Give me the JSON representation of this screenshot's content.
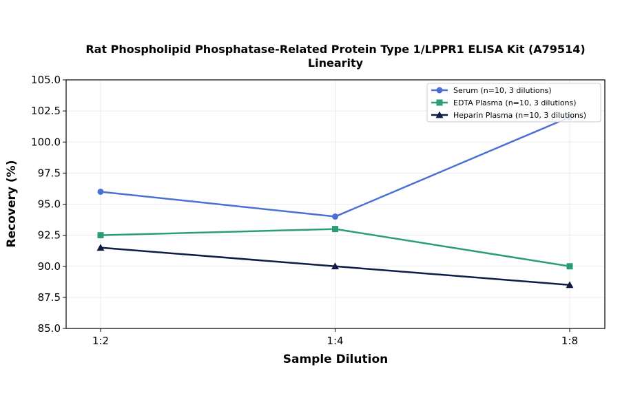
{
  "chart_data": {
    "type": "line",
    "title": "Rat Phospholipid Phosphatase-Related Protein Type 1/LPPR1 ELISA Kit (A79514)",
    "subtitle": "Linearity",
    "xlabel": "Sample Dilution",
    "ylabel": "Recovery (%)",
    "categories": [
      "1:2",
      "1:4",
      "1:8"
    ],
    "ylim": [
      85.0,
      105.0
    ],
    "yticks": [
      "85.0",
      "87.5",
      "90.0",
      "92.5",
      "95.0",
      "97.5",
      "100.0",
      "102.5",
      "105.0"
    ],
    "grid": true,
    "legend_position": "top-right",
    "series": [
      {
        "name": "Serum (n=10, 3 dilutions)",
        "values": [
          96.0,
          94.0,
          102.0
        ],
        "color": "#4a6fd6",
        "marker": "circle"
      },
      {
        "name": "EDTA Plasma (n=10, 3 dilutions)",
        "values": [
          92.5,
          93.0,
          90.0
        ],
        "color": "#2a9d73",
        "marker": "square"
      },
      {
        "name": "Heparin Plasma (n=10, 3 dilutions)",
        "values": [
          91.5,
          90.0,
          88.5
        ],
        "color": "#0d1b45",
        "marker": "triangle"
      }
    ]
  }
}
